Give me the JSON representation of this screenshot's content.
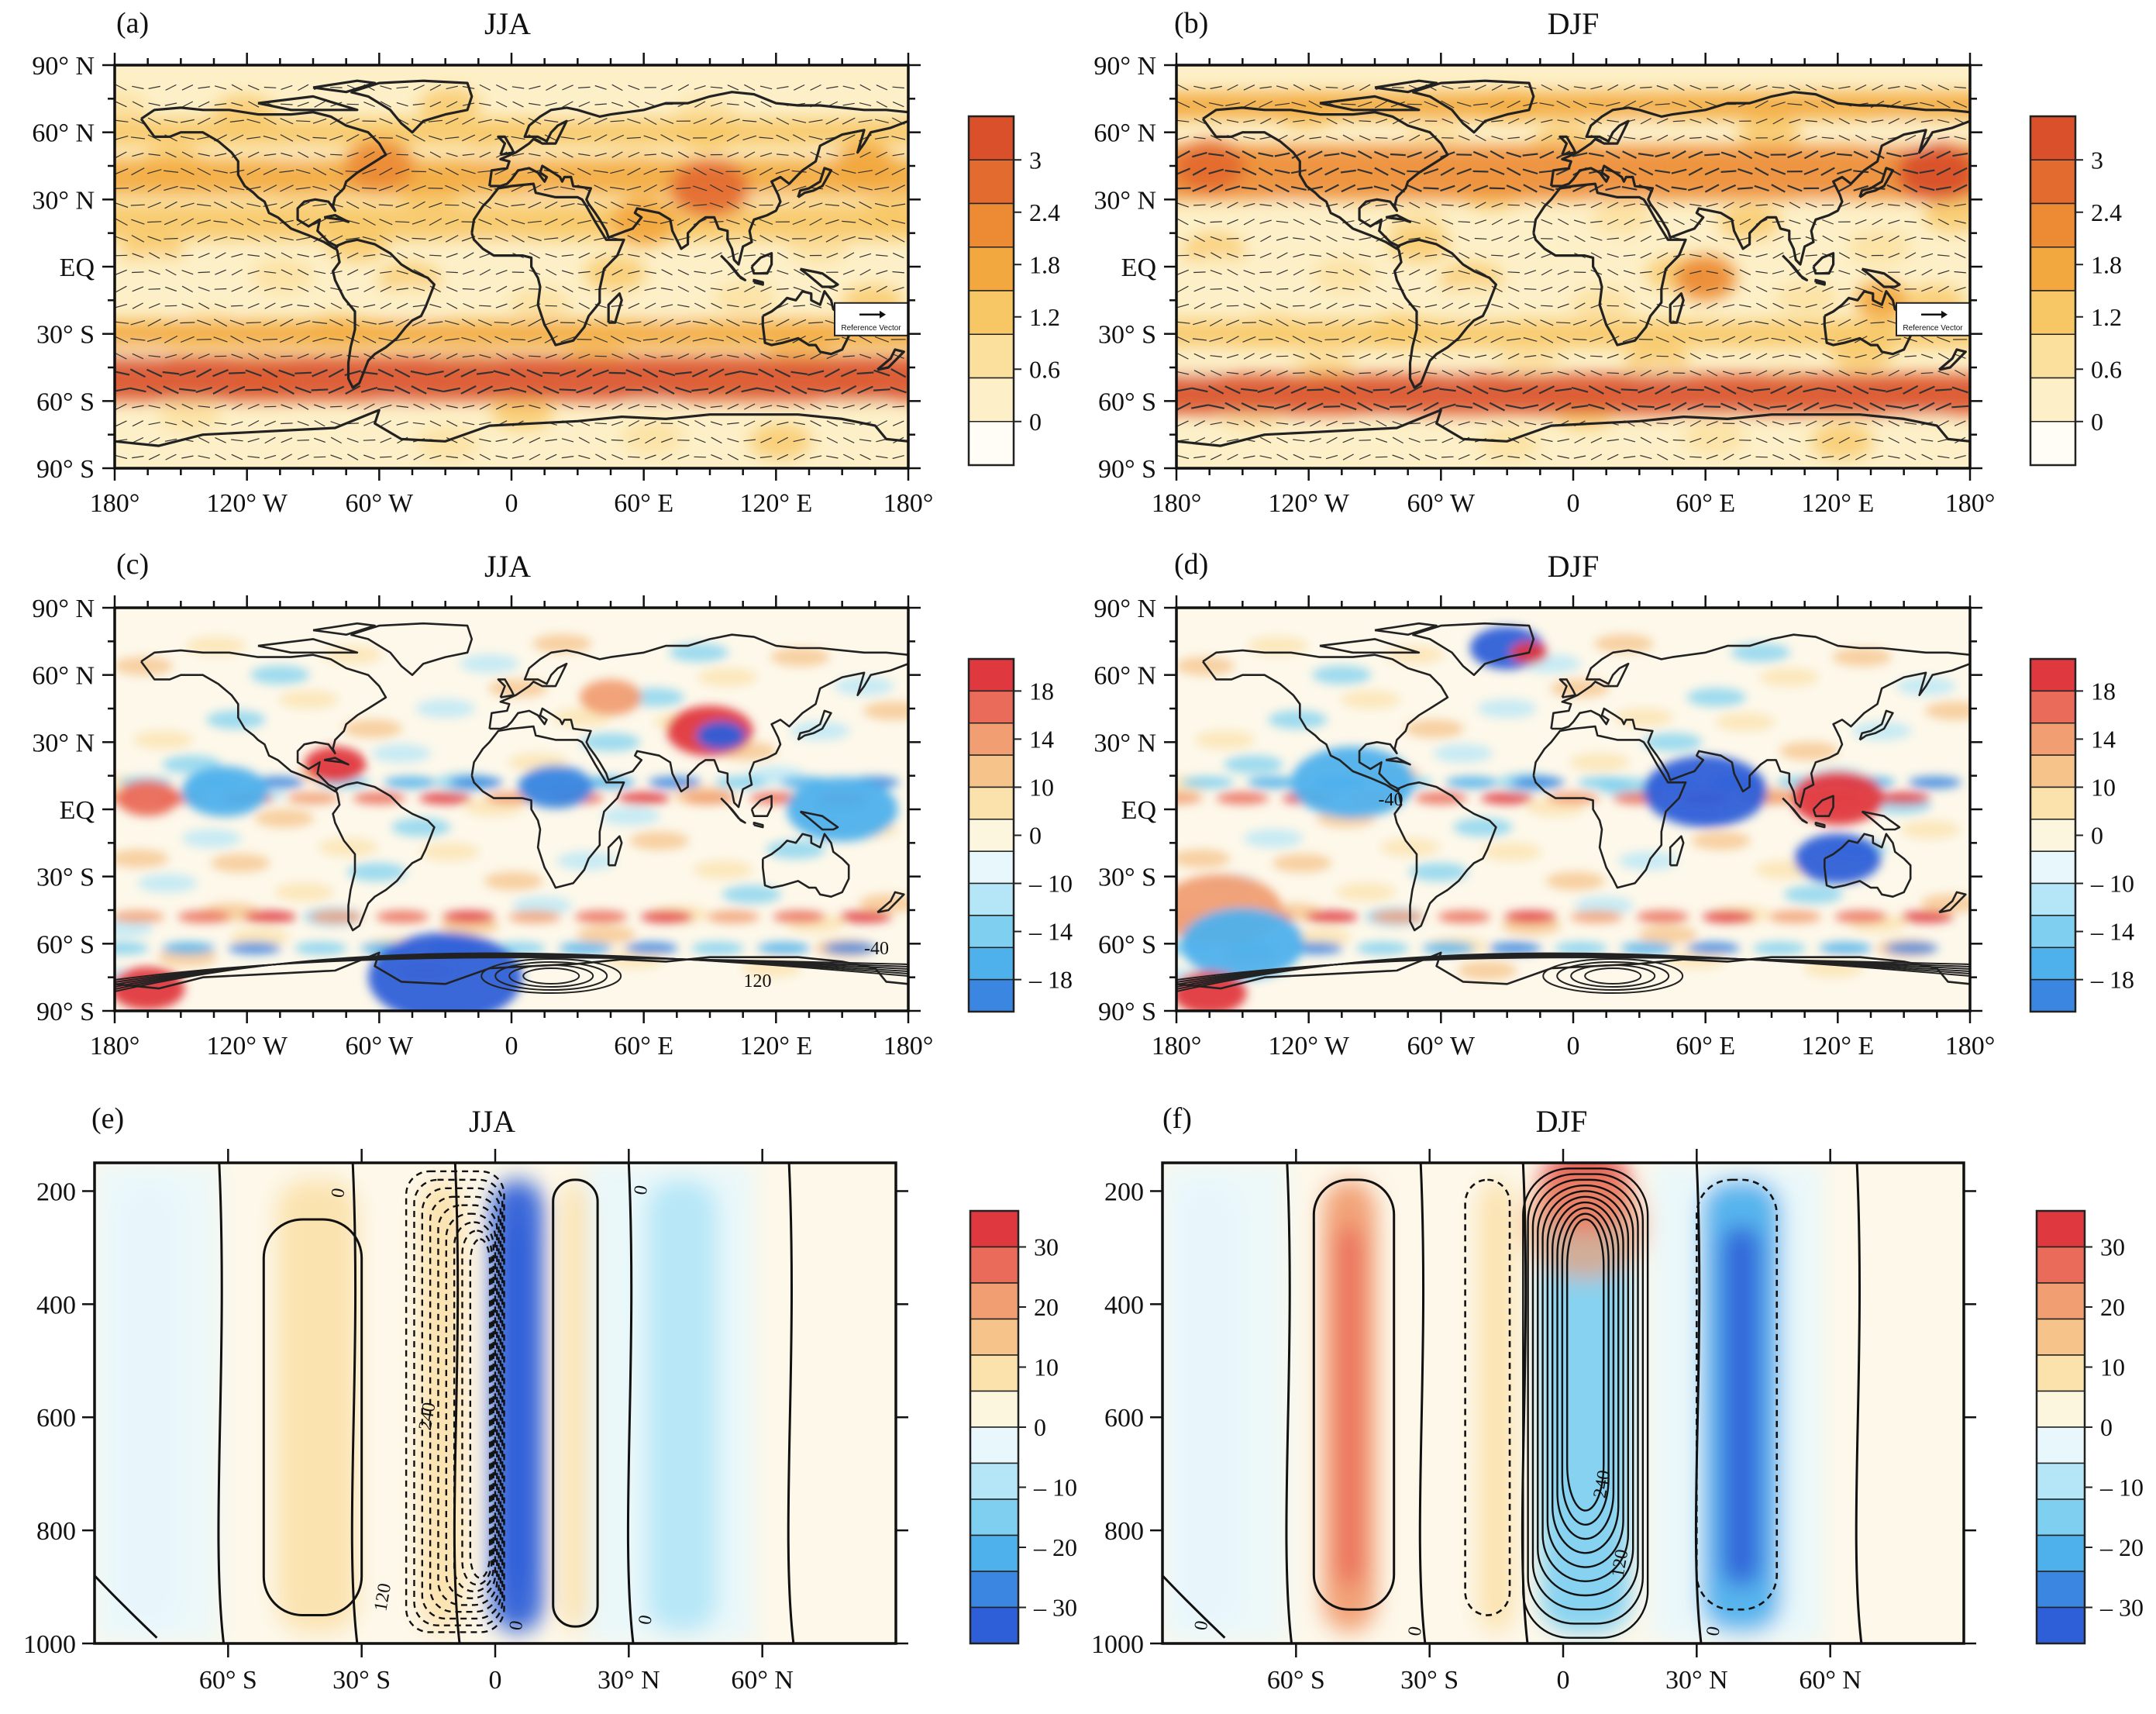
{
  "figure": {
    "panels": [
      "(a)",
      "(b)",
      "(c)",
      "(d)",
      "(e)",
      "(f)"
    ]
  },
  "colors": {
    "warm": [
      "#fffdf6",
      "#fdf0c8",
      "#fbdf9c",
      "#f7c766",
      "#f2a83e",
      "#ec8b34",
      "#e46b2f",
      "#d9502a"
    ],
    "diverging_neg": [
      "#e8f7fc",
      "#b5e6f7",
      "#7fd0f0",
      "#4fb1ec",
      "#3a86e0",
      "#2f5fd8"
    ],
    "diverging_pos": [
      "#fdf6df",
      "#fbe2ad",
      "#f6c38a",
      "#f19e73",
      "#ea6b5a",
      "#e0383f"
    ],
    "land_line": "#222222",
    "vector": "#333333"
  },
  "chart_data": [
    {
      "id": "a",
      "type": "heatmap",
      "letter": "(a)",
      "title": "JJA",
      "x_ticks": [
        "180°",
        "120° W",
        "60° W",
        "0",
        "60° E",
        "120° E",
        "180°"
      ],
      "y_ticks": [
        "90° N",
        "60° N",
        "30° N",
        "EQ",
        "30° S",
        "60° S",
        "90° S"
      ],
      "xlim": [
        -180,
        180
      ],
      "ylim": [
        -90,
        90
      ],
      "colorbar": [
        "3",
        "2.4",
        "1.8",
        "1.2",
        "0.6",
        "0"
      ],
      "reference_vector_label": "Reference Vector",
      "bands": [
        {
          "lat": -50,
          "width": 10,
          "level": 7
        },
        {
          "lat": -30,
          "width": 6,
          "level": 4
        },
        {
          "lat": 40,
          "width": 8,
          "level": 4
        },
        {
          "lat": 20,
          "width": 8,
          "level": 3
        },
        {
          "lat": 60,
          "width": 6,
          "level": 3
        }
      ],
      "hotspots": [
        {
          "lon": 90,
          "lat": 35,
          "r": 18,
          "level": 6
        },
        {
          "lon": -60,
          "lat": 45,
          "r": 16,
          "level": 5
        },
        {
          "lon": 160,
          "lat": 45,
          "r": 14,
          "level": 4
        },
        {
          "lon": 60,
          "lat": 20,
          "r": 15,
          "level": 4
        }
      ]
    },
    {
      "id": "b",
      "type": "heatmap",
      "letter": "(b)",
      "title": "DJF",
      "x_ticks": [
        "180°",
        "120° W",
        "60° W",
        "0",
        "60° E",
        "120° E",
        "180°"
      ],
      "y_ticks": [
        "90° N",
        "60° N",
        "30° N",
        "EQ",
        "30° S",
        "60° S",
        "90° S"
      ],
      "xlim": [
        -180,
        180
      ],
      "ylim": [
        -90,
        90
      ],
      "colorbar": [
        "3",
        "2.4",
        "1.8",
        "1.2",
        "0.6",
        "0"
      ],
      "reference_vector_label": "Reference Vector",
      "bands": [
        {
          "lat": -57,
          "width": 9,
          "level": 7
        },
        {
          "lat": 42,
          "width": 12,
          "level": 5
        },
        {
          "lat": 72,
          "width": 6,
          "level": 4
        },
        {
          "lat": -30,
          "width": 6,
          "level": 3
        }
      ],
      "hotspots": [
        {
          "lon": 165,
          "lat": 42,
          "r": 18,
          "level": 7
        },
        {
          "lon": -165,
          "lat": 45,
          "r": 16,
          "level": 6
        },
        {
          "lon": 60,
          "lat": -5,
          "r": 14,
          "level": 5
        },
        {
          "lon": 140,
          "lat": -15,
          "r": 12,
          "level": 4
        }
      ]
    },
    {
      "id": "c",
      "type": "heatmap",
      "letter": "(c)",
      "title": "JJA",
      "x_ticks": [
        "180°",
        "120° W",
        "60° W",
        "0",
        "60° E",
        "120° E",
        "180°"
      ],
      "y_ticks": [
        "90° N",
        "60° N",
        "30° N",
        "EQ",
        "30° S",
        "60° S",
        "90° S"
      ],
      "xlim": [
        -180,
        180
      ],
      "ylim": [
        -90,
        90
      ],
      "colorbar": [
        "18",
        "14",
        "10",
        "0",
        "– 10",
        "– 14",
        "– 18"
      ],
      "contour_labels": [
        "-40",
        "120"
      ],
      "blobs": [
        {
          "lon": 90,
          "lat": 35,
          "r": 14,
          "v": 18
        },
        {
          "lon": 95,
          "lat": 33,
          "r": 8,
          "v": -18
        },
        {
          "lon": -80,
          "lat": 20,
          "r": 10,
          "v": 16
        },
        {
          "lon": -165,
          "lat": 5,
          "r": 10,
          "v": 14
        },
        {
          "lon": -130,
          "lat": 8,
          "r": 14,
          "v": -10
        },
        {
          "lon": 20,
          "lat": 10,
          "r": 12,
          "v": -14
        },
        {
          "lon": 150,
          "lat": 0,
          "r": 18,
          "v": -12
        },
        {
          "lon": -30,
          "lat": -75,
          "r": 25,
          "v": -16
        },
        {
          "lon": -165,
          "lat": -80,
          "r": 12,
          "v": 18
        },
        {
          "lon": 45,
          "lat": 50,
          "r": 10,
          "v": 12
        }
      ]
    },
    {
      "id": "d",
      "type": "heatmap",
      "letter": "(d)",
      "title": "DJF",
      "x_ticks": [
        "180°",
        "120° W",
        "60° W",
        "0",
        "60° E",
        "120° E",
        "180°"
      ],
      "y_ticks": [
        "90° N",
        "60° N",
        "30° N",
        "EQ",
        "30° S",
        "60° S",
        "90° S"
      ],
      "xlim": [
        -180,
        180
      ],
      "ylim": [
        -90,
        90
      ],
      "colorbar": [
        "18",
        "14",
        "10",
        "0",
        "– 10",
        "– 14",
        "– 18"
      ],
      "contour_labels": [
        "-40"
      ],
      "blobs": [
        {
          "lon": -30,
          "lat": 72,
          "r": 12,
          "v": -18
        },
        {
          "lon": -20,
          "lat": 70,
          "r": 6,
          "v": 18
        },
        {
          "lon": 60,
          "lat": 8,
          "r": 20,
          "v": -16
        },
        {
          "lon": 120,
          "lat": 5,
          "r": 15,
          "v": 16
        },
        {
          "lon": -100,
          "lat": 12,
          "r": 20,
          "v": -12
        },
        {
          "lon": 120,
          "lat": -22,
          "r": 14,
          "v": -18
        },
        {
          "lon": -160,
          "lat": -45,
          "r": 20,
          "v": 12
        },
        {
          "lon": -150,
          "lat": -60,
          "r": 20,
          "v": -12
        },
        {
          "lon": -165,
          "lat": -82,
          "r": 12,
          "v": 18
        }
      ]
    },
    {
      "id": "e",
      "type": "heatmap",
      "letter": "(e)",
      "title": "JJA",
      "x_ticks": [
        "60° S",
        "30° S",
        "0",
        "30° N",
        "60° N"
      ],
      "y_ticks": [
        "200",
        "400",
        "600",
        "800",
        "1000"
      ],
      "xlim": [
        -90,
        90
      ],
      "ylim": [
        1000,
        150
      ],
      "colorbar": [
        "30",
        "20",
        "10",
        "0",
        "– 10",
        "– 20",
        "– 30"
      ],
      "contour_labels": [
        "0",
        "240",
        "120",
        "0",
        "0",
        "0"
      ],
      "columns": [
        {
          "lat": -40,
          "width": 9,
          "v": 10
        },
        {
          "lat": -12,
          "width": 5,
          "v": 8
        },
        {
          "lat": 5,
          "width": 6,
          "v": -32
        },
        {
          "lat": 18,
          "width": 3,
          "v": 6
        },
        {
          "lat": 42,
          "width": 8,
          "v": -8
        },
        {
          "lat": -78,
          "width": 8,
          "v": -4
        }
      ]
    },
    {
      "id": "f",
      "type": "heatmap",
      "letter": "(f)",
      "title": "DJF",
      "x_ticks": [
        "60° S",
        "30° S",
        "0",
        "30° N",
        "60° N"
      ],
      "y_ticks": [
        "200",
        "400",
        "600",
        "800",
        "1000"
      ],
      "xlim": [
        -90,
        90
      ],
      "ylim": [
        1000,
        150
      ],
      "colorbar": [
        "30",
        "20",
        "10",
        "0",
        "– 10",
        "– 20",
        "– 30"
      ],
      "contour_labels": [
        "0",
        "0",
        "240",
        "120",
        "0"
      ],
      "columns": [
        {
          "lat": -48,
          "width": 6,
          "v": 22
        },
        {
          "lat": -15,
          "width": 4,
          "v": 8
        },
        {
          "lat": 5,
          "width": 10,
          "v": -14
        },
        {
          "lat": 40,
          "width": 9,
          "v": -20
        },
        {
          "lat": -80,
          "width": 8,
          "v": -4
        }
      ],
      "top_hot": {
        "lat": 5,
        "p": 200,
        "v": 32
      }
    }
  ]
}
